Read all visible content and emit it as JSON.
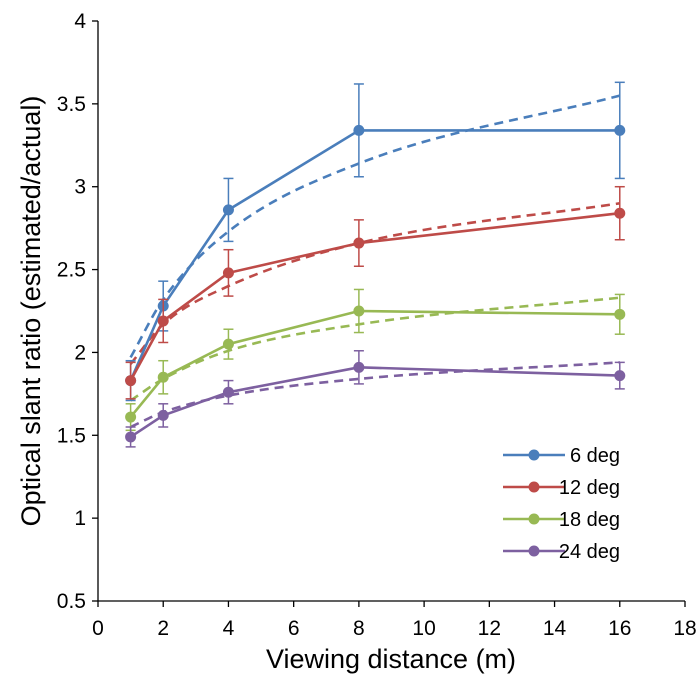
{
  "chart_data": {
    "type": "line",
    "title": "",
    "xlabel": "Viewing distance (m)",
    "ylabel": "Optical slant ratio (estimated/actual)",
    "xlim": [
      0,
      18
    ],
    "ylim": [
      0.5,
      4
    ],
    "xticks": [
      0,
      2,
      4,
      6,
      8,
      10,
      12,
      14,
      16,
      18
    ],
    "yticks": [
      0.5,
      1,
      1.5,
      2,
      2.5,
      3,
      3.5,
      4
    ],
    "ytick_labels": [
      "0.5",
      "1",
      "1.5",
      "2",
      "2.5",
      "3",
      "3.5",
      "4"
    ],
    "grid": false,
    "legend_position": "bottom-right",
    "x": [
      1,
      2,
      4,
      8,
      16
    ],
    "series": [
      {
        "name": "6 deg",
        "color": "#4a7ebb",
        "values": [
          1.83,
          2.28,
          2.86,
          3.34,
          3.34
        ],
        "error": [
          0.12,
          0.15,
          0.19,
          0.28,
          0.29
        ],
        "fit": [
          1.97,
          2.32,
          2.73,
          3.14,
          3.55
        ]
      },
      {
        "name": "12 deg",
        "color": "#be4b48",
        "values": [
          1.83,
          2.19,
          2.48,
          2.66,
          2.84
        ],
        "error": [
          0.11,
          0.13,
          0.14,
          0.14,
          0.16
        ],
        "fit": [
          1.93,
          2.17,
          2.4,
          2.66,
          2.9
        ]
      },
      {
        "name": "18 deg",
        "color": "#98b954",
        "values": [
          1.61,
          1.85,
          2.05,
          2.25,
          2.23
        ],
        "error": [
          0.08,
          0.1,
          0.09,
          0.13,
          0.12
        ],
        "fit": [
          1.71,
          1.84,
          2.01,
          2.17,
          2.33
        ]
      },
      {
        "name": "24 deg",
        "color": "#7d60a0",
        "values": [
          1.49,
          1.62,
          1.76,
          1.91,
          1.86
        ],
        "error": [
          0.06,
          0.07,
          0.07,
          0.1,
          0.08
        ],
        "fit": [
          1.55,
          1.64,
          1.74,
          1.84,
          1.94
        ]
      }
    ]
  }
}
